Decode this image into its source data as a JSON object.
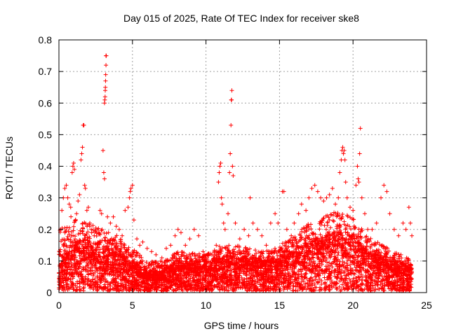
{
  "chart_data": {
    "type": "scatter",
    "title": "Day 015 of 2025, Rate Of TEC Index for receiver ske8",
    "xlabel": "GPS time / hours",
    "ylabel": "ROTI / TECUs",
    "xlim": [
      0,
      25
    ],
    "ylim": [
      0,
      0.8
    ],
    "xticks": [
      0,
      5,
      10,
      15,
      20,
      25
    ],
    "xtick_labels": [
      "0",
      "5",
      "10",
      "15",
      "20",
      "25"
    ],
    "yticks": [
      0,
      0.1,
      0.2,
      0.3,
      0.4,
      0.5,
      0.6,
      0.7,
      0.8
    ],
    "ytick_labels": [
      "0",
      "0.1",
      "0.2",
      "0.3",
      "0.4",
      "0.5",
      "0.6",
      "0.7",
      "0.8"
    ],
    "grid": true,
    "marker": "+",
    "color": "#ff0000",
    "series": [
      {
        "name": "ROTI",
        "points": [
          [
            0.05,
            0.12
          ],
          [
            0.1,
            0.2
          ],
          [
            0.2,
            0.26
          ],
          [
            0.3,
            0.3
          ],
          [
            0.4,
            0.33
          ],
          [
            0.5,
            0.34
          ],
          [
            0.6,
            0.3
          ],
          [
            0.7,
            0.28
          ],
          [
            0.8,
            0.27
          ],
          [
            0.9,
            0.38
          ],
          [
            0.95,
            0.4
          ],
          [
            1.0,
            0.41
          ],
          [
            1.05,
            0.39
          ],
          [
            1.2,
            0.25
          ],
          [
            1.3,
            0.29
          ],
          [
            1.4,
            0.31
          ],
          [
            1.5,
            0.42
          ],
          [
            1.55,
            0.44
          ],
          [
            1.6,
            0.46
          ],
          [
            1.65,
            0.53
          ],
          [
            1.7,
            0.53
          ],
          [
            1.75,
            0.34
          ],
          [
            1.8,
            0.33
          ],
          [
            1.9,
            0.26
          ],
          [
            2.0,
            0.27
          ],
          [
            2.1,
            0.22
          ],
          [
            2.2,
            0.2
          ],
          [
            2.4,
            0.18
          ],
          [
            2.6,
            0.2
          ],
          [
            2.8,
            0.26
          ],
          [
            2.9,
            0.25
          ],
          [
            3.0,
            0.45
          ],
          [
            3.05,
            0.38
          ],
          [
            3.1,
            0.36
          ],
          [
            3.1,
            0.6
          ],
          [
            3.12,
            0.61
          ],
          [
            3.14,
            0.62
          ],
          [
            3.15,
            0.64
          ],
          [
            3.16,
            0.65
          ],
          [
            3.17,
            0.67
          ],
          [
            3.18,
            0.69
          ],
          [
            3.2,
            0.72
          ],
          [
            3.2,
            0.75
          ],
          [
            3.22,
            0.75
          ],
          [
            3.3,
            0.24
          ],
          [
            3.5,
            0.22
          ],
          [
            3.7,
            0.24
          ],
          [
            3.9,
            0.21
          ],
          [
            4.1,
            0.2
          ],
          [
            4.3,
            0.18
          ],
          [
            4.5,
            0.26
          ],
          [
            4.7,
            0.27
          ],
          [
            4.8,
            0.3
          ],
          [
            4.85,
            0.32
          ],
          [
            4.9,
            0.33
          ],
          [
            5.0,
            0.34
          ],
          [
            5.1,
            0.23
          ],
          [
            5.3,
            0.17
          ],
          [
            5.5,
            0.15
          ],
          [
            5.7,
            0.16
          ],
          [
            6.0,
            0.14
          ],
          [
            6.3,
            0.13
          ],
          [
            6.6,
            0.12
          ],
          [
            7.0,
            0.11
          ],
          [
            7.3,
            0.14
          ],
          [
            7.6,
            0.15
          ],
          [
            7.9,
            0.18
          ],
          [
            8.1,
            0.2
          ],
          [
            8.3,
            0.19
          ],
          [
            8.6,
            0.15
          ],
          [
            8.9,
            0.17
          ],
          [
            9.2,
            0.2
          ],
          [
            9.5,
            0.18
          ],
          [
            9.8,
            0.13
          ],
          [
            10.1,
            0.12
          ],
          [
            10.4,
            0.12
          ],
          [
            10.7,
            0.15
          ],
          [
            10.85,
            0.35
          ],
          [
            10.9,
            0.38
          ],
          [
            10.95,
            0.4
          ],
          [
            11.0,
            0.41
          ],
          [
            11.05,
            0.3
          ],
          [
            11.1,
            0.28
          ],
          [
            11.2,
            0.22
          ],
          [
            11.3,
            0.2
          ],
          [
            11.5,
            0.25
          ],
          [
            11.6,
            0.38
          ],
          [
            11.65,
            0.44
          ],
          [
            11.7,
            0.53
          ],
          [
            11.72,
            0.61
          ],
          [
            11.74,
            0.61
          ],
          [
            11.76,
            0.64
          ],
          [
            11.8,
            0.4
          ],
          [
            11.85,
            0.37
          ],
          [
            12.0,
            0.22
          ],
          [
            12.3,
            0.17
          ],
          [
            12.6,
            0.2
          ],
          [
            12.9,
            0.18
          ],
          [
            13.0,
            0.3
          ],
          [
            13.2,
            0.22
          ],
          [
            13.5,
            0.2
          ],
          [
            13.8,
            0.18
          ],
          [
            14.1,
            0.15
          ],
          [
            14.4,
            0.22
          ],
          [
            14.7,
            0.25
          ],
          [
            14.9,
            0.22
          ],
          [
            15.2,
            0.32
          ],
          [
            15.3,
            0.32
          ],
          [
            15.5,
            0.2
          ],
          [
            15.8,
            0.18
          ],
          [
            16.0,
            0.22
          ],
          [
            16.3,
            0.25
          ],
          [
            16.5,
            0.28
          ],
          [
            16.8,
            0.26
          ],
          [
            17.0,
            0.3
          ],
          [
            17.2,
            0.33
          ],
          [
            17.4,
            0.34
          ],
          [
            17.6,
            0.32
          ],
          [
            17.8,
            0.3
          ],
          [
            18.0,
            0.29
          ],
          [
            18.2,
            0.3
          ],
          [
            18.4,
            0.31
          ],
          [
            18.6,
            0.33
          ],
          [
            18.8,
            0.28
          ],
          [
            19.0,
            0.3
          ],
          [
            19.1,
            0.38
          ],
          [
            19.2,
            0.42
          ],
          [
            19.25,
            0.45
          ],
          [
            19.3,
            0.46
          ],
          [
            19.35,
            0.44
          ],
          [
            19.4,
            0.45
          ],
          [
            19.45,
            0.42
          ],
          [
            19.5,
            0.35
          ],
          [
            19.6,
            0.3
          ],
          [
            19.8,
            0.27
          ],
          [
            20.0,
            0.26
          ],
          [
            20.2,
            0.34
          ],
          [
            20.3,
            0.4
          ],
          [
            20.35,
            0.36
          ],
          [
            20.4,
            0.35
          ],
          [
            20.45,
            0.44
          ],
          [
            20.5,
            0.52
          ],
          [
            20.6,
            0.3
          ],
          [
            20.8,
            0.25
          ],
          [
            21.0,
            0.2
          ],
          [
            21.3,
            0.2
          ],
          [
            21.6,
            0.22
          ],
          [
            21.9,
            0.3
          ],
          [
            22.1,
            0.34
          ],
          [
            22.3,
            0.32
          ],
          [
            22.5,
            0.25
          ],
          [
            22.8,
            0.2
          ],
          [
            23.1,
            0.18
          ],
          [
            23.4,
            0.22
          ],
          [
            23.6,
            0.2
          ],
          [
            23.8,
            0.27
          ],
          [
            23.9,
            0.22
          ],
          [
            24.0,
            0.18
          ]
        ]
      }
    ],
    "band_mean": [
      [
        0,
        0.05
      ],
      [
        1,
        0.1
      ],
      [
        2,
        0.1
      ],
      [
        3,
        0.09
      ],
      [
        4,
        0.08
      ],
      [
        5,
        0.06
      ],
      [
        6,
        0.04
      ],
      [
        7,
        0.04
      ],
      [
        8,
        0.06
      ],
      [
        9,
        0.06
      ],
      [
        10,
        0.06
      ],
      [
        11,
        0.07
      ],
      [
        12,
        0.07
      ],
      [
        13,
        0.07
      ],
      [
        14,
        0.06
      ],
      [
        15,
        0.07
      ],
      [
        16,
        0.08
      ],
      [
        17,
        0.1
      ],
      [
        18,
        0.11
      ],
      [
        19,
        0.12
      ],
      [
        20,
        0.11
      ],
      [
        21,
        0.08
      ],
      [
        22,
        0.07
      ],
      [
        23,
        0.06
      ],
      [
        24,
        0.05
      ]
    ],
    "band_top": [
      [
        0,
        0.2
      ],
      [
        1,
        0.25
      ],
      [
        2,
        0.22
      ],
      [
        3,
        0.2
      ],
      [
        4,
        0.18
      ],
      [
        5,
        0.14
      ],
      [
        6,
        0.1
      ],
      [
        7,
        0.1
      ],
      [
        8,
        0.13
      ],
      [
        9,
        0.13
      ],
      [
        10,
        0.12
      ],
      [
        11,
        0.15
      ],
      [
        12,
        0.15
      ],
      [
        13,
        0.14
      ],
      [
        14,
        0.13
      ],
      [
        15,
        0.15
      ],
      [
        16,
        0.18
      ],
      [
        17,
        0.22
      ],
      [
        18,
        0.24
      ],
      [
        19,
        0.26
      ],
      [
        20,
        0.24
      ],
      [
        21,
        0.18
      ],
      [
        22,
        0.15
      ],
      [
        23,
        0.13
      ],
      [
        24,
        0.1
      ]
    ]
  }
}
